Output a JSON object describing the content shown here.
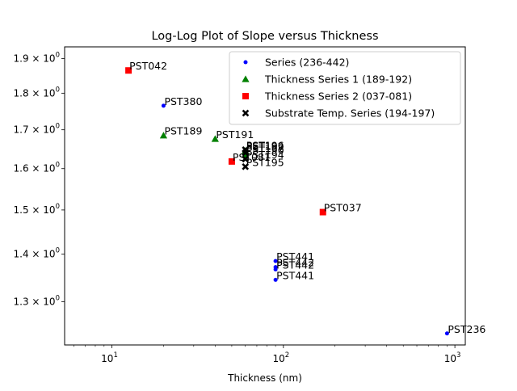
{
  "chart_data": {
    "type": "scatter",
    "title": "Log-Log Plot of Slope versus Thickness",
    "xlabel": "Thickness (nm)",
    "ylabel": "",
    "xscale": "log",
    "yscale": "log",
    "xlim": [
      5.3,
      1150
    ],
    "ylim": [
      1.215,
      1.935
    ],
    "grid": false,
    "legend_position": "upper right",
    "xticks": [
      {
        "value": 10,
        "base": "10",
        "exp": "1"
      },
      {
        "value": 100,
        "base": "10",
        "exp": "2"
      },
      {
        "value": 1000,
        "base": "10",
        "exp": "3"
      }
    ],
    "yticks": [
      {
        "value": 1.3,
        "label": "1.3 × 10",
        "exp": "0"
      },
      {
        "value": 1.4,
        "label": "1.4 × 10",
        "exp": "0"
      },
      {
        "value": 1.5,
        "label": "1.5 × 10",
        "exp": "0"
      },
      {
        "value": 1.6,
        "label": "1.6 × 10",
        "exp": "0"
      },
      {
        "value": 1.7,
        "label": "1.7 × 10",
        "exp": "0"
      },
      {
        "value": 1.8,
        "label": "1.8 × 10",
        "exp": "0"
      },
      {
        "value": 1.9,
        "label": "1.9 × 10",
        "exp": "0"
      }
    ],
    "series": [
      {
        "name": "Series (236-442)",
        "marker": "dot",
        "color": "#0000ff",
        "points": [
          {
            "x": 20,
            "y": 1.765,
            "label": "PST380"
          },
          {
            "x": 90,
            "y": 1.385,
            "label": "PST441"
          },
          {
            "x": 90,
            "y": 1.372,
            "label": "PST442"
          },
          {
            "x": 90,
            "y": 1.367,
            "label": "PST442"
          },
          {
            "x": 90,
            "y": 1.345,
            "label": "PST441"
          },
          {
            "x": 900,
            "y": 1.237,
            "label": "PST236"
          }
        ]
      },
      {
        "name": "Thickness Series 1 (189-192)",
        "marker": "triangle",
        "color": "#008000",
        "points": [
          {
            "x": 20,
            "y": 1.685,
            "label": "PST189"
          },
          {
            "x": 40,
            "y": 1.676,
            "label": "PST191"
          },
          {
            "x": 60,
            "y": 1.645,
            "label": "PST192"
          },
          {
            "x": 60,
            "y": 1.635,
            "label": "PST190"
          }
        ]
      },
      {
        "name": "Thickness Series 2 (037-081)",
        "marker": "square",
        "color": "#ff0000",
        "points": [
          {
            "x": 12.5,
            "y": 1.865,
            "label": "PST042"
          },
          {
            "x": 50,
            "y": 1.618,
            "label": "PST081"
          },
          {
            "x": 170,
            "y": 1.495,
            "label": "PST037"
          }
        ]
      },
      {
        "name": "Substrate Temp. Series (194-197)",
        "marker": "x",
        "color": "#000000",
        "points": [
          {
            "x": 60,
            "y": 1.648,
            "label": "PST196"
          },
          {
            "x": 60,
            "y": 1.64,
            "label": "PST197"
          },
          {
            "x": 60,
            "y": 1.624,
            "label": "PST194"
          },
          {
            "x": 60,
            "y": 1.605,
            "label": "PST195"
          }
        ]
      }
    ]
  }
}
